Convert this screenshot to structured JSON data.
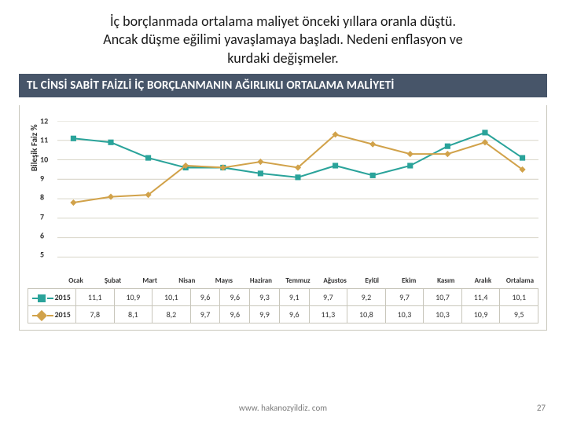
{
  "title_lines": [
    "İç borçlanmada ortalama maliyet önceki yıllara oranla düştü.",
    "Ancak düşme eğilimi yavaşlamaya başladı. Nedeni enflasyon ve",
    "kurdaki değişmeler."
  ],
  "banner": "TL CİNSİ SABİT FAİZLİ İÇ BORÇLANMANIN AĞIRLIKLI ORTALAMA MALİYETİ",
  "chart": {
    "ylabel": "Bileşik Faiz %",
    "ylim": [
      5,
      12
    ],
    "ytick_step": 1,
    "categories": [
      "Ocak",
      "Şubat",
      "Mart",
      "Nisan",
      "Mayıs",
      "Haziran",
      "Temmuz",
      "Ağustos",
      "Eylül",
      "Ekim",
      "Kasım",
      "Aralık",
      "Ortalama"
    ],
    "series": [
      {
        "name": "2015",
        "marker": "square",
        "color": "#2aa39a",
        "values": [
          11.1,
          10.9,
          10.1,
          9.6,
          9.6,
          9.3,
          9.1,
          9.7,
          9.2,
          9.7,
          10.7,
          11.4,
          10.1
        ]
      },
      {
        "name": "2015",
        "marker": "diamond",
        "color": "#d1a24a",
        "values": [
          7.8,
          8.1,
          8.2,
          9.7,
          9.6,
          9.9,
          9.6,
          11.3,
          10.8,
          10.3,
          10.3,
          10.9,
          9.5
        ]
      }
    ],
    "grid_color": "#d9d6c9",
    "legend_labels": [
      "2015",
      "2015"
    ]
  },
  "footer": {
    "url": "www. hakanozyildiz. com",
    "page": "27"
  }
}
